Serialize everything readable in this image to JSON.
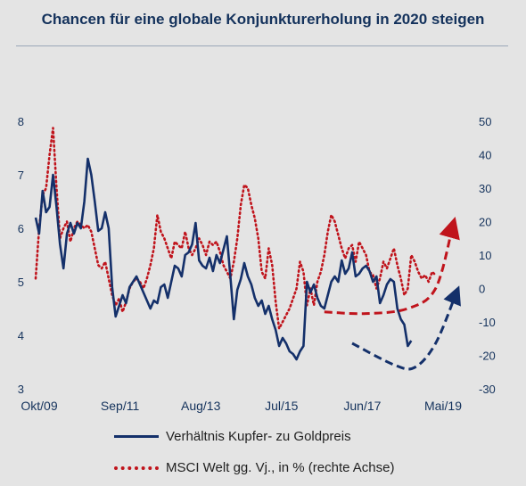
{
  "title": "Chancen für eine globale Konjunkturerholung in 2020 steigen",
  "legend": {
    "series1": "Verhältnis Kupfer- zu Goldpreis",
    "series2": "MSCI Welt gg. Vj., in % (rechte Achse)"
  },
  "colors": {
    "navy": "#14306a",
    "red": "#c0141c",
    "background": "#e4e4e4",
    "text": "#14325c"
  },
  "chart_data": {
    "type": "line",
    "title": "Chancen für eine globale Konjunkturerholung in 2020 steigen",
    "x_tick_labels": [
      "Okt/09",
      "Sep/11",
      "Aug/13",
      "Jul/15",
      "Jun/17",
      "Mai/19"
    ],
    "x_range": [
      "2009-10",
      "2019-11"
    ],
    "y_left": {
      "range": [
        3,
        8
      ],
      "ticks": [
        3,
        4,
        5,
        6,
        7,
        8
      ]
    },
    "y_right": {
      "range": [
        -30,
        50
      ],
      "ticks": [
        -30,
        -20,
        -10,
        0,
        10,
        20,
        30,
        40,
        50
      ]
    },
    "grid": false,
    "legend_position": "bottom",
    "series": [
      {
        "name": "Verhältnis Kupfer- zu Goldpreis",
        "axis": "left",
        "style": "solid",
        "color": "#14306a",
        "points": [
          [
            "2009-10",
            6.2
          ],
          [
            "2009-11",
            5.9
          ],
          [
            "2009-12",
            6.7
          ],
          [
            "2010-01",
            6.3
          ],
          [
            "2010-02",
            6.4
          ],
          [
            "2010-03",
            7.0
          ],
          [
            "2010-04",
            6.4
          ],
          [
            "2010-05",
            5.7
          ],
          [
            "2010-06",
            5.25
          ],
          [
            "2010-07",
            5.9
          ],
          [
            "2010-08",
            6.1
          ],
          [
            "2010-09",
            5.9
          ],
          [
            "2010-10",
            6.1
          ],
          [
            "2010-11",
            6.0
          ],
          [
            "2010-12",
            6.5
          ],
          [
            "2011-01",
            7.3
          ],
          [
            "2011-02",
            7.0
          ],
          [
            "2011-03",
            6.5
          ],
          [
            "2011-04",
            5.95
          ],
          [
            "2011-05",
            6.0
          ],
          [
            "2011-06",
            6.3
          ],
          [
            "2011-07",
            6.0
          ],
          [
            "2011-08",
            4.9
          ],
          [
            "2011-09",
            4.35
          ],
          [
            "2011-10",
            4.55
          ],
          [
            "2011-11",
            4.75
          ],
          [
            "2011-12",
            4.6
          ],
          [
            "2012-01",
            4.9
          ],
          [
            "2012-02",
            5.0
          ],
          [
            "2012-03",
            5.1
          ],
          [
            "2012-04",
            4.95
          ],
          [
            "2012-05",
            4.8
          ],
          [
            "2012-06",
            4.65
          ],
          [
            "2012-07",
            4.5
          ],
          [
            "2012-08",
            4.65
          ],
          [
            "2012-09",
            4.6
          ],
          [
            "2012-10",
            4.9
          ],
          [
            "2012-11",
            4.95
          ],
          [
            "2012-12",
            4.7
          ],
          [
            "2013-01",
            5.0
          ],
          [
            "2013-02",
            5.3
          ],
          [
            "2013-03",
            5.25
          ],
          [
            "2013-04",
            5.1
          ],
          [
            "2013-05",
            5.5
          ],
          [
            "2013-06",
            5.55
          ],
          [
            "2013-07",
            5.7
          ],
          [
            "2013-08",
            6.1
          ],
          [
            "2013-09",
            5.4
          ],
          [
            "2013-10",
            5.3
          ],
          [
            "2013-11",
            5.25
          ],
          [
            "2013-12",
            5.45
          ],
          [
            "2014-01",
            5.2
          ],
          [
            "2014-02",
            5.5
          ],
          [
            "2014-03",
            5.35
          ],
          [
            "2014-04",
            5.6
          ],
          [
            "2014-05",
            5.85
          ],
          [
            "2014-06",
            5.1
          ],
          [
            "2014-07",
            4.3
          ],
          [
            "2014-08",
            4.85
          ],
          [
            "2014-09",
            5.05
          ],
          [
            "2014-10",
            5.35
          ],
          [
            "2014-11",
            5.1
          ],
          [
            "2014-12",
            4.95
          ],
          [
            "2015-01",
            4.7
          ],
          [
            "2015-02",
            4.55
          ],
          [
            "2015-03",
            4.65
          ],
          [
            "2015-04",
            4.4
          ],
          [
            "2015-05",
            4.55
          ],
          [
            "2015-06",
            4.3
          ],
          [
            "2015-07",
            4.1
          ],
          [
            "2015-08",
            3.8
          ],
          [
            "2015-09",
            3.95
          ],
          [
            "2015-10",
            3.85
          ],
          [
            "2015-11",
            3.7
          ],
          [
            "2015-12",
            3.65
          ],
          [
            "2016-01",
            3.55
          ],
          [
            "2016-02",
            3.7
          ],
          [
            "2016-03",
            3.8
          ],
          [
            "2016-04",
            5.0
          ],
          [
            "2016-05",
            4.8
          ],
          [
            "2016-06",
            4.95
          ],
          [
            "2016-07",
            4.7
          ],
          [
            "2016-08",
            4.55
          ],
          [
            "2016-09",
            4.5
          ],
          [
            "2016-10",
            4.75
          ],
          [
            "2016-11",
            5.0
          ],
          [
            "2016-12",
            5.1
          ],
          [
            "2017-01",
            5.0
          ],
          [
            "2017-02",
            5.4
          ],
          [
            "2017-03",
            5.15
          ],
          [
            "2017-04",
            5.25
          ],
          [
            "2017-05",
            5.55
          ],
          [
            "2017-06",
            5.1
          ],
          [
            "2017-07",
            5.15
          ],
          [
            "2017-08",
            5.25
          ],
          [
            "2017-09",
            5.3
          ],
          [
            "2017-10",
            5.2
          ],
          [
            "2017-11",
            5.0
          ],
          [
            "2017-12",
            5.1
          ],
          [
            "2018-01",
            4.6
          ],
          [
            "2018-02",
            4.75
          ],
          [
            "2018-03",
            4.95
          ],
          [
            "2018-04",
            5.05
          ],
          [
            "2018-05",
            5.0
          ],
          [
            "2018-06",
            4.5
          ],
          [
            "2018-07",
            4.3
          ],
          [
            "2018-08",
            4.2
          ],
          [
            "2018-09",
            3.8
          ],
          [
            "2018-10",
            3.9
          ]
        ]
      },
      {
        "name": "MSCI Welt gg. Vj., in % (rechte Achse)",
        "axis": "right",
        "style": "dotted",
        "color": "#c0141c",
        "points": [
          [
            "2009-10",
            3
          ],
          [
            "2009-11",
            18
          ],
          [
            "2009-12",
            28
          ],
          [
            "2010-01",
            30
          ],
          [
            "2010-02",
            40
          ],
          [
            "2010-03",
            48
          ],
          [
            "2010-04",
            30
          ],
          [
            "2010-05",
            15
          ],
          [
            "2010-06",
            18
          ],
          [
            "2010-07",
            20
          ],
          [
            "2010-08",
            14
          ],
          [
            "2010-09",
            18
          ],
          [
            "2010-10",
            20
          ],
          [
            "2010-11",
            19
          ],
          [
            "2010-12",
            18
          ],
          [
            "2011-01",
            19
          ],
          [
            "2011-02",
            17
          ],
          [
            "2011-03",
            12
          ],
          [
            "2011-04",
            7
          ],
          [
            "2011-05",
            6
          ],
          [
            "2011-06",
            8
          ],
          [
            "2011-07",
            3
          ],
          [
            "2011-08",
            -2
          ],
          [
            "2011-09",
            -5
          ],
          [
            "2011-10",
            -3
          ],
          [
            "2011-11",
            -7
          ],
          [
            "2011-12",
            -4
          ],
          [
            "2012-01",
            0
          ],
          [
            "2012-02",
            2
          ],
          [
            "2012-03",
            3
          ],
          [
            "2012-04",
            2
          ],
          [
            "2012-05",
            0
          ],
          [
            "2012-06",
            3
          ],
          [
            "2012-07",
            7
          ],
          [
            "2012-08",
            12
          ],
          [
            "2012-09",
            22
          ],
          [
            "2012-10",
            17
          ],
          [
            "2012-11",
            15
          ],
          [
            "2012-12",
            12
          ],
          [
            "2013-01",
            9
          ],
          [
            "2013-02",
            14
          ],
          [
            "2013-03",
            13
          ],
          [
            "2013-04",
            12
          ],
          [
            "2013-05",
            17
          ],
          [
            "2013-06",
            12
          ],
          [
            "2013-07",
            10
          ],
          [
            "2013-08",
            12
          ],
          [
            "2013-09",
            15
          ],
          [
            "2013-10",
            13
          ],
          [
            "2013-11",
            10
          ],
          [
            "2013-12",
            14
          ],
          [
            "2014-01",
            13
          ],
          [
            "2014-02",
            14
          ],
          [
            "2014-03",
            11
          ],
          [
            "2014-04",
            7
          ],
          [
            "2014-05",
            5
          ],
          [
            "2014-06",
            3
          ],
          [
            "2014-07",
            8
          ],
          [
            "2014-08",
            15
          ],
          [
            "2014-09",
            25
          ],
          [
            "2014-10",
            31
          ],
          [
            "2014-11",
            30
          ],
          [
            "2014-12",
            25
          ],
          [
            "2015-01",
            21
          ],
          [
            "2015-02",
            15
          ],
          [
            "2015-03",
            5
          ],
          [
            "2015-04",
            3
          ],
          [
            "2015-05",
            12
          ],
          [
            "2015-06",
            7
          ],
          [
            "2015-07",
            -4
          ],
          [
            "2015-08",
            -12
          ],
          [
            "2015-09",
            -10
          ],
          [
            "2015-10",
            -8
          ],
          [
            "2015-11",
            -6
          ],
          [
            "2015-12",
            -3
          ],
          [
            "2016-01",
            0
          ],
          [
            "2016-02",
            8
          ],
          [
            "2016-03",
            5
          ],
          [
            "2016-04",
            -5
          ],
          [
            "2016-05",
            0
          ],
          [
            "2016-06",
            -5
          ],
          [
            "2016-07",
            2
          ],
          [
            "2016-08",
            5
          ],
          [
            "2016-09",
            10
          ],
          [
            "2016-10",
            17
          ],
          [
            "2016-11",
            22
          ],
          [
            "2016-12",
            20
          ],
          [
            "2017-01",
            16
          ],
          [
            "2017-02",
            12
          ],
          [
            "2017-03",
            9
          ],
          [
            "2017-04",
            12
          ],
          [
            "2017-05",
            13
          ],
          [
            "2017-06",
            8
          ],
          [
            "2017-07",
            14
          ],
          [
            "2017-08",
            12
          ],
          [
            "2017-09",
            10
          ],
          [
            "2017-10",
            5
          ],
          [
            "2017-11",
            4
          ],
          [
            "2017-12",
            0
          ],
          [
            "2018-01",
            3
          ],
          [
            "2018-02",
            8
          ],
          [
            "2018-03",
            6
          ],
          [
            "2018-04",
            9
          ],
          [
            "2018-05",
            12
          ],
          [
            "2018-06",
            7
          ],
          [
            "2018-07",
            3
          ],
          [
            "2018-08",
            -2
          ],
          [
            "2018-09",
            0
          ],
          [
            "2018-10",
            10
          ],
          [
            "2018-11",
            8
          ],
          [
            "2018-12",
            5
          ],
          [
            "2019-01",
            3
          ],
          [
            "2019-02",
            4
          ],
          [
            "2019-03",
            2
          ],
          [
            "2019-04",
            5
          ],
          [
            "2019-05",
            4
          ]
        ]
      }
    ],
    "annotations": [
      {
        "kind": "forecast-arrow",
        "axis": "right",
        "style": "dashed",
        "color": "#c0141c",
        "points": [
          [
            "2016-09",
            -7
          ],
          [
            "2017-09",
            -7.5
          ],
          [
            "2018-09",
            -6
          ],
          [
            "2019-05",
            0
          ],
          [
            "2019-10",
            19
          ]
        ]
      },
      {
        "kind": "forecast-arrow",
        "axis": "left",
        "style": "dashed",
        "color": "#14306a",
        "points": [
          [
            "2017-05",
            3.85
          ],
          [
            "2018-05",
            3.45
          ],
          [
            "2018-11",
            3.4
          ],
          [
            "2019-05",
            3.85
          ],
          [
            "2019-11",
            4.8
          ]
        ]
      }
    ]
  }
}
